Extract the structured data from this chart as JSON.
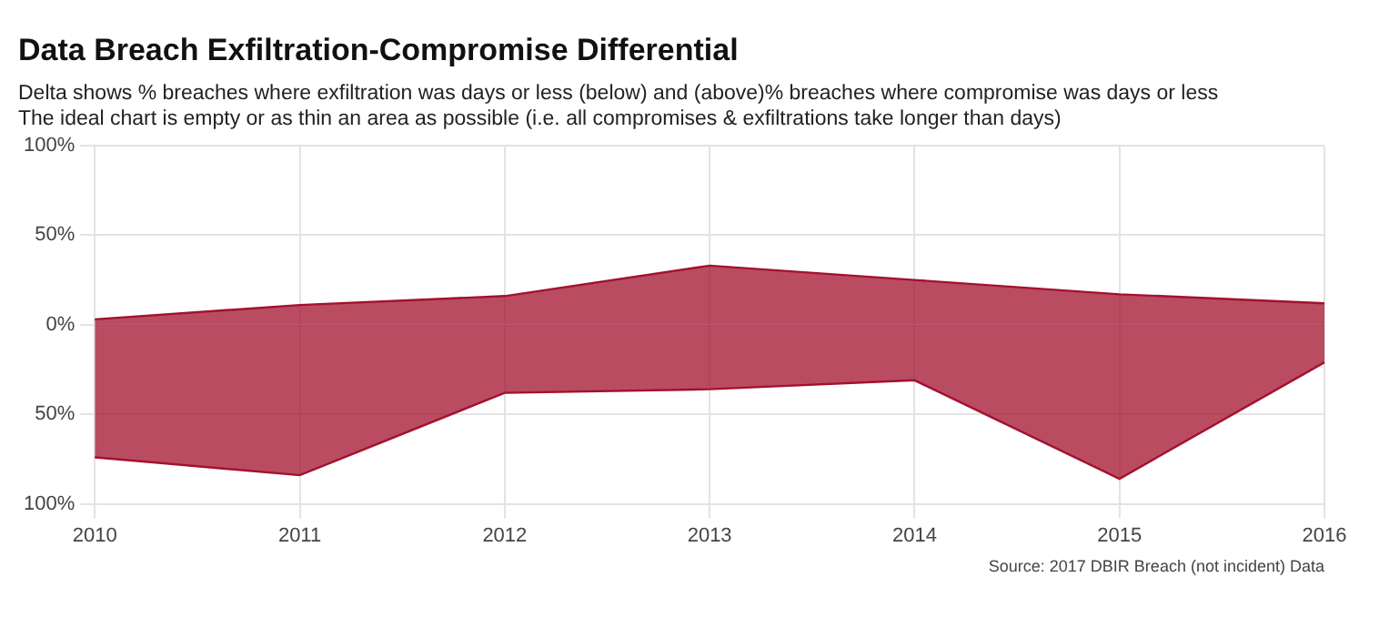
{
  "chart_data": {
    "type": "area",
    "title": "Data Breach Exfiltration-Compromise Differential",
    "subtitle": "Delta shows % breaches where exfiltration was days or less (below) and (above)% breaches where compromise was days or less\nThe ideal chart is empty or as thin an area as possible (i.e. all compromises & exfiltrations take longer than days)",
    "categories": [
      "2010",
      "2011",
      "2012",
      "2013",
      "2014",
      "2015",
      "2016"
    ],
    "series": [
      {
        "color": "#a3112f",
        "values": [
          3,
          11,
          16,
          33,
          25,
          17,
          12
        ]
      },
      {
        "color": "#a3112f",
        "values": [
          -74,
          -84,
          -38,
          -36,
          -31,
          -86,
          -21
        ]
      }
    ],
    "ylim": [
      -100,
      100
    ],
    "yticks": [
      {
        "value": -100,
        "label": "100%"
      },
      {
        "value": -50,
        "label": "50%"
      },
      {
        "value": 0,
        "label": "0%"
      },
      {
        "value": 50,
        "label": "50%"
      },
      {
        "value": 100,
        "label": "100%"
      }
    ],
    "grid": true,
    "legend": false,
    "annotations": [
      "Source: 2017 DBIR Breach (not incident) Data"
    ]
  }
}
